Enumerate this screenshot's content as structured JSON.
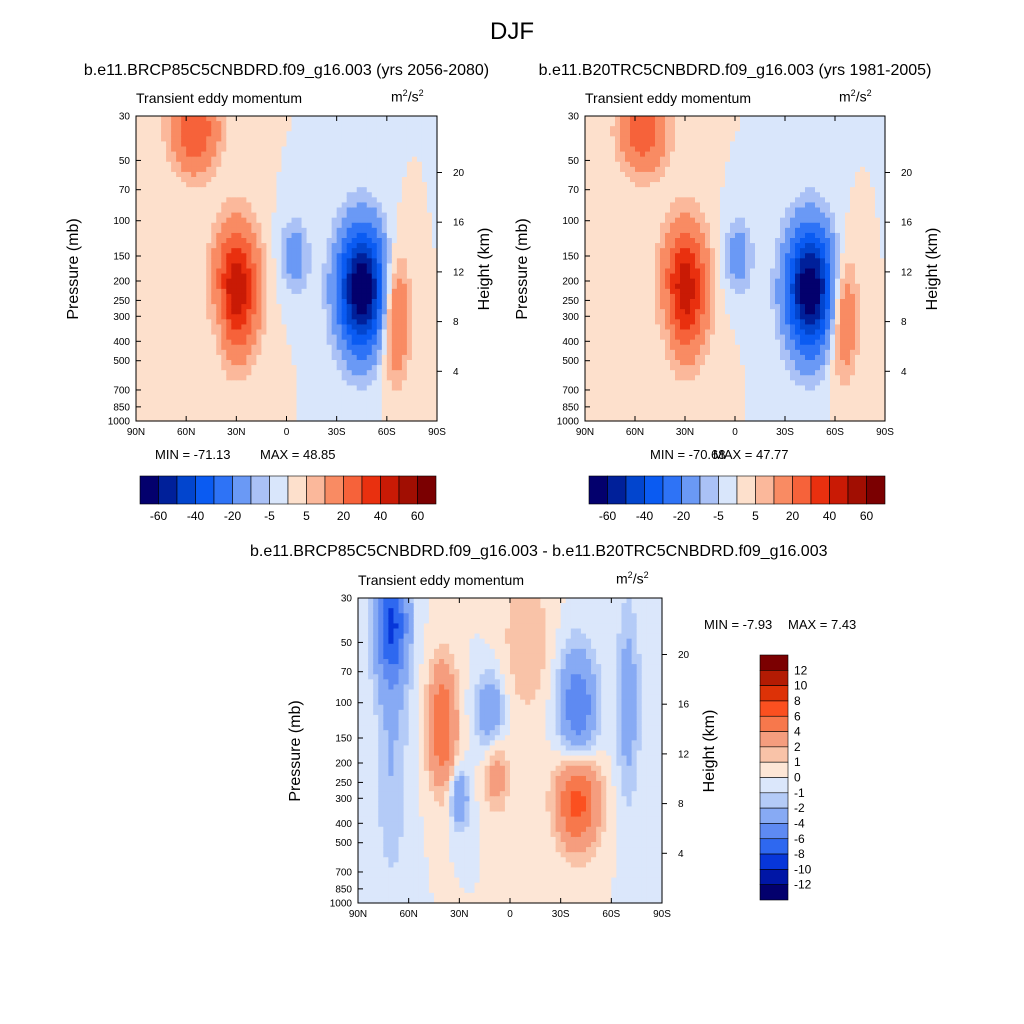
{
  "title": "DJF",
  "chart_data": [
    {
      "type": "heatmap",
      "panel": "top-left",
      "title": "b.e11.BRCP85C5CNBDRD.f09_g16.003 (yrs 2056-2080)",
      "left_string": "Transient eddy momentum",
      "units_base": "m",
      "units_mid": "/s",
      "units_sup": "2",
      "ylabel": "Pressure (mb)",
      "ylabel_right": "Height (km)",
      "x_ticks": [
        "90N",
        "60N",
        "30N",
        "0",
        "30S",
        "60S",
        "90S"
      ],
      "y_ticks": [
        "30",
        "50",
        "70",
        "100",
        "150",
        "200",
        "250",
        "300",
        "400",
        "500",
        "700",
        "850",
        "1000"
      ],
      "height_ticks": [
        "20",
        "16",
        "12",
        "8",
        "4"
      ],
      "ylim": [
        1000,
        30
      ],
      "y_scale": "log",
      "min_label": "MIN = -71.13",
      "max_label": "MAX =  48.85",
      "min": -71.13,
      "max": 48.85,
      "colorbar_orientation": "horizontal",
      "colorbar_ticks": [
        "-60",
        "-40",
        "-20",
        "-5",
        "5",
        "20",
        "40",
        "60"
      ],
      "features": [
        {
          "lat": 30,
          "p": 220,
          "v": 48,
          "sx": 9,
          "sy": 0.5
        },
        {
          "lat": 55,
          "p": 35,
          "v": 30,
          "sx": 10,
          "sy": 0.35
        },
        {
          "lat": -65,
          "p": 300,
          "v": 25,
          "sx": 6,
          "sy": 0.5
        },
        {
          "lat": -45,
          "p": 220,
          "v": -71,
          "sx": 10,
          "sy": 0.5
        },
        {
          "lat": -5,
          "p": 150,
          "v": -15,
          "sx": 6,
          "sy": 0.3
        },
        {
          "lat": 40,
          "p": 300,
          "v": -8,
          "sx": 4,
          "sy": 0.3
        }
      ]
    },
    {
      "type": "heatmap",
      "panel": "top-right",
      "title": "b.e11.B20TRC5CNBDRD.f09_g16.003 (yrs 1981-2005)",
      "left_string": "Transient eddy momentum",
      "units_base": "m",
      "units_mid": "/s",
      "units_sup": "2",
      "ylabel": "Pressure (mb)",
      "ylabel_right": "Height (km)",
      "x_ticks": [
        "90N",
        "60N",
        "30N",
        "0",
        "30S",
        "60S",
        "90S"
      ],
      "y_ticks": [
        "30",
        "50",
        "70",
        "100",
        "150",
        "200",
        "250",
        "300",
        "400",
        "500",
        "700",
        "850",
        "1000"
      ],
      "height_ticks": [
        "20",
        "16",
        "12",
        "8",
        "4"
      ],
      "ylim": [
        1000,
        30
      ],
      "y_scale": "log",
      "min_label": "MIN = -70.68",
      "max_label": "MAX =  47.77",
      "min": -70.68,
      "max": 47.77,
      "colorbar_orientation": "horizontal",
      "colorbar_ticks": [
        "-60",
        "-40",
        "-20",
        "-5",
        "5",
        "20",
        "40",
        "60"
      ],
      "features": [
        {
          "lat": 30,
          "p": 220,
          "v": 47,
          "sx": 9,
          "sy": 0.5
        },
        {
          "lat": 55,
          "p": 35,
          "v": 28,
          "sx": 10,
          "sy": 0.35
        },
        {
          "lat": -65,
          "p": 300,
          "v": 22,
          "sx": 6,
          "sy": 0.5
        },
        {
          "lat": -45,
          "p": 220,
          "v": -70,
          "sx": 10,
          "sy": 0.5
        },
        {
          "lat": -2,
          "p": 150,
          "v": -15,
          "sx": 6,
          "sy": 0.3
        },
        {
          "lat": 40,
          "p": 300,
          "v": -6,
          "sx": 4,
          "sy": 0.3
        }
      ]
    },
    {
      "type": "heatmap",
      "panel": "bottom",
      "title": "b.e11.BRCP85C5CNBDRD.f09_g16.003 - b.e11.B20TRC5CNBDRD.f09_g16.003",
      "left_string": "Transient eddy momentum",
      "units_base": "m",
      "units_mid": "/s",
      "units_sup": "2",
      "ylabel": "Pressure (mb)",
      "ylabel_right": "Height (km)",
      "x_ticks": [
        "90N",
        "60N",
        "30N",
        "0",
        "30S",
        "60S",
        "90S"
      ],
      "y_ticks": [
        "30",
        "50",
        "70",
        "100",
        "150",
        "200",
        "250",
        "300",
        "400",
        "500",
        "700",
        "850",
        "1000"
      ],
      "height_ticks": [
        "20",
        "16",
        "12",
        "8",
        "4"
      ],
      "ylim": [
        1000,
        30
      ],
      "y_scale": "log",
      "min_label": "MIN =  -7.93",
      "max_label": "MAX =   7.43",
      "min": -7.93,
      "max": 7.43,
      "colorbar_orientation": "vertical",
      "colorbar_ticks": [
        "12",
        "10",
        "8",
        "6",
        "4",
        "2",
        "1",
        "0",
        "-1",
        "-2",
        "-4",
        "-6",
        "-8",
        "-10",
        "-12"
      ],
      "features": [
        {
          "lat": 70,
          "p": 40,
          "v": -8,
          "sx": 7,
          "sy": 0.5
        },
        {
          "lat": 70,
          "p": 200,
          "v": -2,
          "sx": 7,
          "sy": 1.0
        },
        {
          "lat": 40,
          "p": 130,
          "v": 6,
          "sx": 6,
          "sy": 0.5
        },
        {
          "lat": 12,
          "p": 110,
          "v": -4,
          "sx": 6,
          "sy": 0.3
        },
        {
          "lat": 30,
          "p": 300,
          "v": -4,
          "sx": 4,
          "sy": 0.25
        },
        {
          "lat": 8,
          "p": 230,
          "v": 3,
          "sx": 5,
          "sy": 0.3
        },
        {
          "lat": -40,
          "p": 300,
          "v": 7.4,
          "sx": 9,
          "sy": 0.4
        },
        {
          "lat": -40,
          "p": 110,
          "v": -6,
          "sx": 8,
          "sy": 0.5
        },
        {
          "lat": -70,
          "p": 100,
          "v": -3,
          "sx": 5,
          "sy": 0.8
        },
        {
          "lat": -10,
          "p": 50,
          "v": 2,
          "sx": 10,
          "sy": 0.6
        }
      ]
    }
  ],
  "legend_colors": {
    "horizontal": [
      "#03006d",
      "#00209a",
      "#0245ce",
      "#0a5bf2",
      "#2e73f6",
      "#6a99f5",
      "#aac1f6",
      "#d9e6fb",
      "#fde0cc",
      "#fbb89b",
      "#f98b63",
      "#f6623a",
      "#e9300f",
      "#c91a05",
      "#a10e02",
      "#7b0001"
    ],
    "vertical": [
      "#7b0001",
      "#b31b03",
      "#dd3207",
      "#fb5020",
      "#f7784c",
      "#f59d7e",
      "#f9c3a8",
      "#fde6d6",
      "#dbe7fb",
      "#b4cbf7",
      "#87aaf4",
      "#5e8af2",
      "#2e68f0",
      "#0736d9",
      "#0016a6",
      "#03006d"
    ]
  }
}
